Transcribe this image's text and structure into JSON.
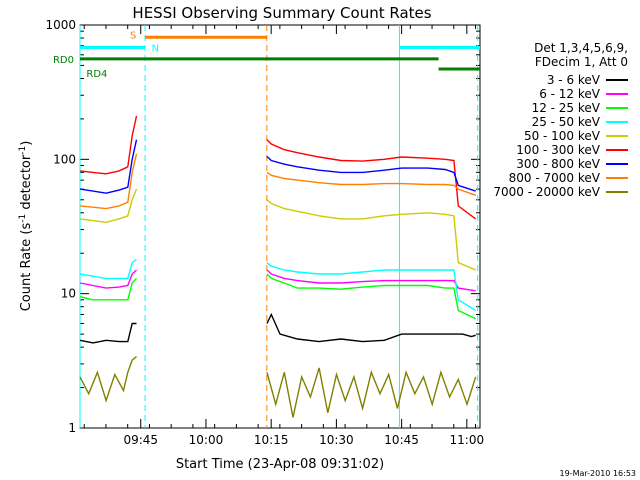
{
  "chart_data": {
    "type": "line",
    "title": "HESSI Observing Summary Count Rates",
    "xlabel": "Start Time (23-Apr-08 09:31:02)",
    "ylabel_main": "Count Rate (s",
    "ylabel_sup1": "-1",
    "ylabel_mid": " detector",
    "ylabel_sup2": "-1",
    "ylabel_end": ")",
    "y_scale": "log",
    "ylim": [
      1,
      1000
    ],
    "xlim_minutes": [
      0,
      92
    ],
    "x_ticks": [
      {
        "label": "09:45",
        "min": 13.97
      },
      {
        "label": "10:00",
        "min": 28.97
      },
      {
        "label": "10:15",
        "min": 43.97
      },
      {
        "label": "10:30",
        "min": 58.97
      },
      {
        "label": "10:45",
        "min": 73.97
      },
      {
        "label": "11:00",
        "min": 88.97
      }
    ],
    "y_ticks": [
      {
        "label": "1",
        "value": 1
      },
      {
        "label": "10",
        "value": 10
      },
      {
        "label": "100",
        "value": 100
      },
      {
        "label": "1000",
        "value": 1000
      }
    ],
    "legend_header": [
      "Det 1,3,4,5,6,9,",
      "FDecim 1, Att 0"
    ],
    "legend_position": "right",
    "series": [
      {
        "name": "3 - 6 keV",
        "color": "#000000",
        "segments": [
          [
            [
              0,
              4.5
            ],
            [
              3,
              4.3
            ],
            [
              6,
              4.5
            ],
            [
              9,
              4.4
            ],
            [
              11,
              4.4
            ],
            [
              12,
              6
            ],
            [
              13,
              6
            ]
          ],
          [
            [
              43,
              6
            ],
            [
              44,
              7
            ],
            [
              46,
              5
            ],
            [
              50,
              4.6
            ],
            [
              55,
              4.4
            ],
            [
              60,
              4.6
            ],
            [
              65,
              4.4
            ],
            [
              70,
              4.5
            ],
            [
              74,
              5
            ],
            [
              80,
              5
            ],
            [
              85,
              5
            ],
            [
              88,
              5
            ],
            [
              90,
              4.8
            ],
            [
              91,
              4.9
            ]
          ]
        ]
      },
      {
        "name": "6 - 12 keV",
        "color": "#ff00ff",
        "segments": [
          [
            [
              0,
              12
            ],
            [
              3,
              11.5
            ],
            [
              6,
              11
            ],
            [
              9,
              11.2
            ],
            [
              11,
              11.5
            ],
            [
              12,
              14
            ],
            [
              13,
              15
            ]
          ],
          [
            [
              43,
              15
            ],
            [
              44,
              14
            ],
            [
              47,
              13
            ],
            [
              50,
              12.5
            ],
            [
              55,
              12
            ],
            [
              60,
              12
            ],
            [
              65,
              12.3
            ],
            [
              70,
              12.5
            ],
            [
              74,
              12.5
            ],
            [
              80,
              12.5
            ],
            [
              84,
              12.5
            ],
            [
              86,
              12.5
            ],
            [
              87,
              11
            ],
            [
              91,
              10.5
            ]
          ]
        ]
      },
      {
        "name": "12 - 25 keV",
        "color": "#00ff00",
        "segments": [
          [
            [
              0,
              9.5
            ],
            [
              3,
              9
            ],
            [
              6,
              9
            ],
            [
              9,
              9
            ],
            [
              11,
              9
            ],
            [
              12,
              12
            ],
            [
              13,
              13
            ]
          ],
          [
            [
              43,
              14
            ],
            [
              44,
              13
            ],
            [
              47,
              12
            ],
            [
              50,
              11
            ],
            [
              55,
              11
            ],
            [
              60,
              10.8
            ],
            [
              65,
              11.2
            ],
            [
              70,
              11.5
            ],
            [
              74,
              11.5
            ],
            [
              80,
              11.5
            ],
            [
              84,
              11
            ],
            [
              86,
              11
            ],
            [
              87,
              7.5
            ],
            [
              91,
              6.5
            ]
          ]
        ]
      },
      {
        "name": "25 - 50 keV",
        "color": "#00ffff",
        "segments": [
          [
            [
              0,
              14
            ],
            [
              3,
              13.5
            ],
            [
              6,
              13
            ],
            [
              9,
              13
            ],
            [
              11,
              13
            ],
            [
              12,
              17
            ],
            [
              13,
              18
            ]
          ],
          [
            [
              43,
              17
            ],
            [
              44,
              16
            ],
            [
              47,
              15
            ],
            [
              50,
              14.5
            ],
            [
              55,
              14
            ],
            [
              60,
              14
            ],
            [
              65,
              14.5
            ],
            [
              70,
              15
            ],
            [
              74,
              15
            ],
            [
              80,
              15
            ],
            [
              84,
              15
            ],
            [
              86,
              15
            ],
            [
              87,
              9
            ],
            [
              91,
              7.5
            ]
          ]
        ]
      },
      {
        "name": "50 - 100 keV",
        "color": "#cccc00",
        "segments": [
          [
            [
              0,
              36
            ],
            [
              3,
              35
            ],
            [
              6,
              34
            ],
            [
              9,
              36
            ],
            [
              11,
              38
            ],
            [
              12,
              50
            ],
            [
              13,
              60
            ]
          ],
          [
            [
              43,
              50
            ],
            [
              44,
              47
            ],
            [
              47,
              43
            ],
            [
              50,
              41
            ],
            [
              55,
              38
            ],
            [
              60,
              36
            ],
            [
              65,
              36
            ],
            [
              70,
              38
            ],
            [
              74,
              39
            ],
            [
              80,
              40
            ],
            [
              84,
              39
            ],
            [
              86,
              38
            ],
            [
              87,
              17
            ],
            [
              91,
              15
            ]
          ]
        ]
      },
      {
        "name": "100 - 300 keV",
        "color": "#ff0000",
        "segments": [
          [
            [
              0,
              82
            ],
            [
              3,
              80
            ],
            [
              6,
              78
            ],
            [
              9,
              82
            ],
            [
              11,
              88
            ],
            [
              12,
              150
            ],
            [
              13,
              210
            ]
          ],
          [
            [
              43,
              140
            ],
            [
              44,
              130
            ],
            [
              47,
              118
            ],
            [
              50,
              112
            ],
            [
              55,
              104
            ],
            [
              60,
              98
            ],
            [
              65,
              97
            ],
            [
              70,
              100
            ],
            [
              74,
              104
            ],
            [
              80,
              102
            ],
            [
              84,
              100
            ],
            [
              86,
              98
            ],
            [
              87,
              45
            ],
            [
              91,
              36
            ]
          ]
        ]
      },
      {
        "name": "300 - 800 keV",
        "color": "#0000ff",
        "segments": [
          [
            [
              0,
              60
            ],
            [
              3,
              58
            ],
            [
              6,
              56
            ],
            [
              9,
              59
            ],
            [
              11,
              62
            ],
            [
              12,
              100
            ],
            [
              13,
              140
            ]
          ],
          [
            [
              43,
              105
            ],
            [
              44,
              98
            ],
            [
              47,
              92
            ],
            [
              50,
              88
            ],
            [
              55,
              83
            ],
            [
              60,
              80
            ],
            [
              65,
              80
            ],
            [
              70,
              83
            ],
            [
              74,
              86
            ],
            [
              80,
              86
            ],
            [
              84,
              84
            ],
            [
              86,
              80
            ],
            [
              87,
              64
            ],
            [
              91,
              58
            ]
          ]
        ]
      },
      {
        "name": "800 - 7000 keV",
        "color": "#ff8000",
        "segments": [
          [
            [
              0,
              45
            ],
            [
              3,
              44
            ],
            [
              6,
              43
            ],
            [
              9,
              45
            ],
            [
              11,
              48
            ],
            [
              12,
              80
            ],
            [
              13,
              110
            ]
          ],
          [
            [
              43,
              80
            ],
            [
              44,
              76
            ],
            [
              47,
              72
            ],
            [
              50,
              70
            ],
            [
              55,
              67
            ],
            [
              60,
              65
            ],
            [
              65,
              65
            ],
            [
              70,
              66
            ],
            [
              74,
              66
            ],
            [
              80,
              65
            ],
            [
              84,
              65
            ],
            [
              86,
              64
            ],
            [
              87,
              60
            ],
            [
              91,
              54
            ]
          ]
        ]
      },
      {
        "name": "7000 - 20000 keV",
        "color": "#808000",
        "segments": [
          [
            [
              0,
              2.4
            ],
            [
              2,
              1.8
            ],
            [
              4,
              2.6
            ],
            [
              6,
              1.6
            ],
            [
              8,
              2.5
            ],
            [
              10,
              1.9
            ],
            [
              11,
              2.6
            ],
            [
              12,
              3.2
            ],
            [
              13,
              3.4
            ]
          ],
          [
            [
              43,
              2.6
            ],
            [
              45,
              1.5
            ],
            [
              47,
              2.6
            ],
            [
              49,
              1.2
            ],
            [
              51,
              2.4
            ],
            [
              53,
              1.7
            ],
            [
              55,
              2.8
            ],
            [
              57,
              1.3
            ],
            [
              59,
              2.5
            ],
            [
              61,
              1.6
            ],
            [
              63,
              2.4
            ],
            [
              65,
              1.4
            ],
            [
              67,
              2.6
            ],
            [
              69,
              1.8
            ],
            [
              71,
              2.5
            ],
            [
              73,
              1.4
            ],
            [
              75,
              2.6
            ],
            [
              77,
              1.8
            ],
            [
              79,
              2.4
            ],
            [
              81,
              1.5
            ],
            [
              83,
              2.6
            ],
            [
              85,
              1.7
            ],
            [
              87,
              2.3
            ],
            [
              89,
              1.5
            ],
            [
              91,
              2.4
            ]
          ]
        ]
      }
    ],
    "vlines": [
      {
        "min": 0,
        "color": "#00ffff",
        "style": "solid"
      },
      {
        "min": 14.97,
        "color": "#00ffff",
        "style": "dashed"
      },
      {
        "min": 42.97,
        "color": "#ff8000",
        "style": "dashed"
      },
      {
        "min": 73.47,
        "color": "#00ffff",
        "style": "solid"
      },
      {
        "min": 91.47,
        "color": "#00ffff",
        "style": "dashed"
      }
    ],
    "status_bars": [
      {
        "color": "#ff8000",
        "level": 810,
        "from": 14.97,
        "to": 42.97
      },
      {
        "color": "#00ffff",
        "level": 680,
        "from": 0,
        "to": 14.97
      },
      {
        "color": "#00ffff",
        "level": 680,
        "from": 73.47,
        "to": 92
      },
      {
        "color": "#007f00",
        "level": 560,
        "from": 0,
        "to": 82.47
      },
      {
        "color": "#007f00",
        "level": 470,
        "from": 82.47,
        "to": 92
      }
    ],
    "flags": [
      {
        "text": "S",
        "color": "#ff8000",
        "min": 12.97,
        "level": 850,
        "side": "end"
      },
      {
        "text": "N",
        "color": "#00ffff",
        "min": 16.47,
        "level": 680,
        "side": "start"
      },
      {
        "text": "RD0",
        "color": "#007f00",
        "side": "outside-left",
        "level": 560
      },
      {
        "text": "RD4",
        "color": "#007f00",
        "min": 1.47,
        "level": 440,
        "side": "start"
      }
    ],
    "timestamp": "19-Mar-2010 16:53"
  }
}
